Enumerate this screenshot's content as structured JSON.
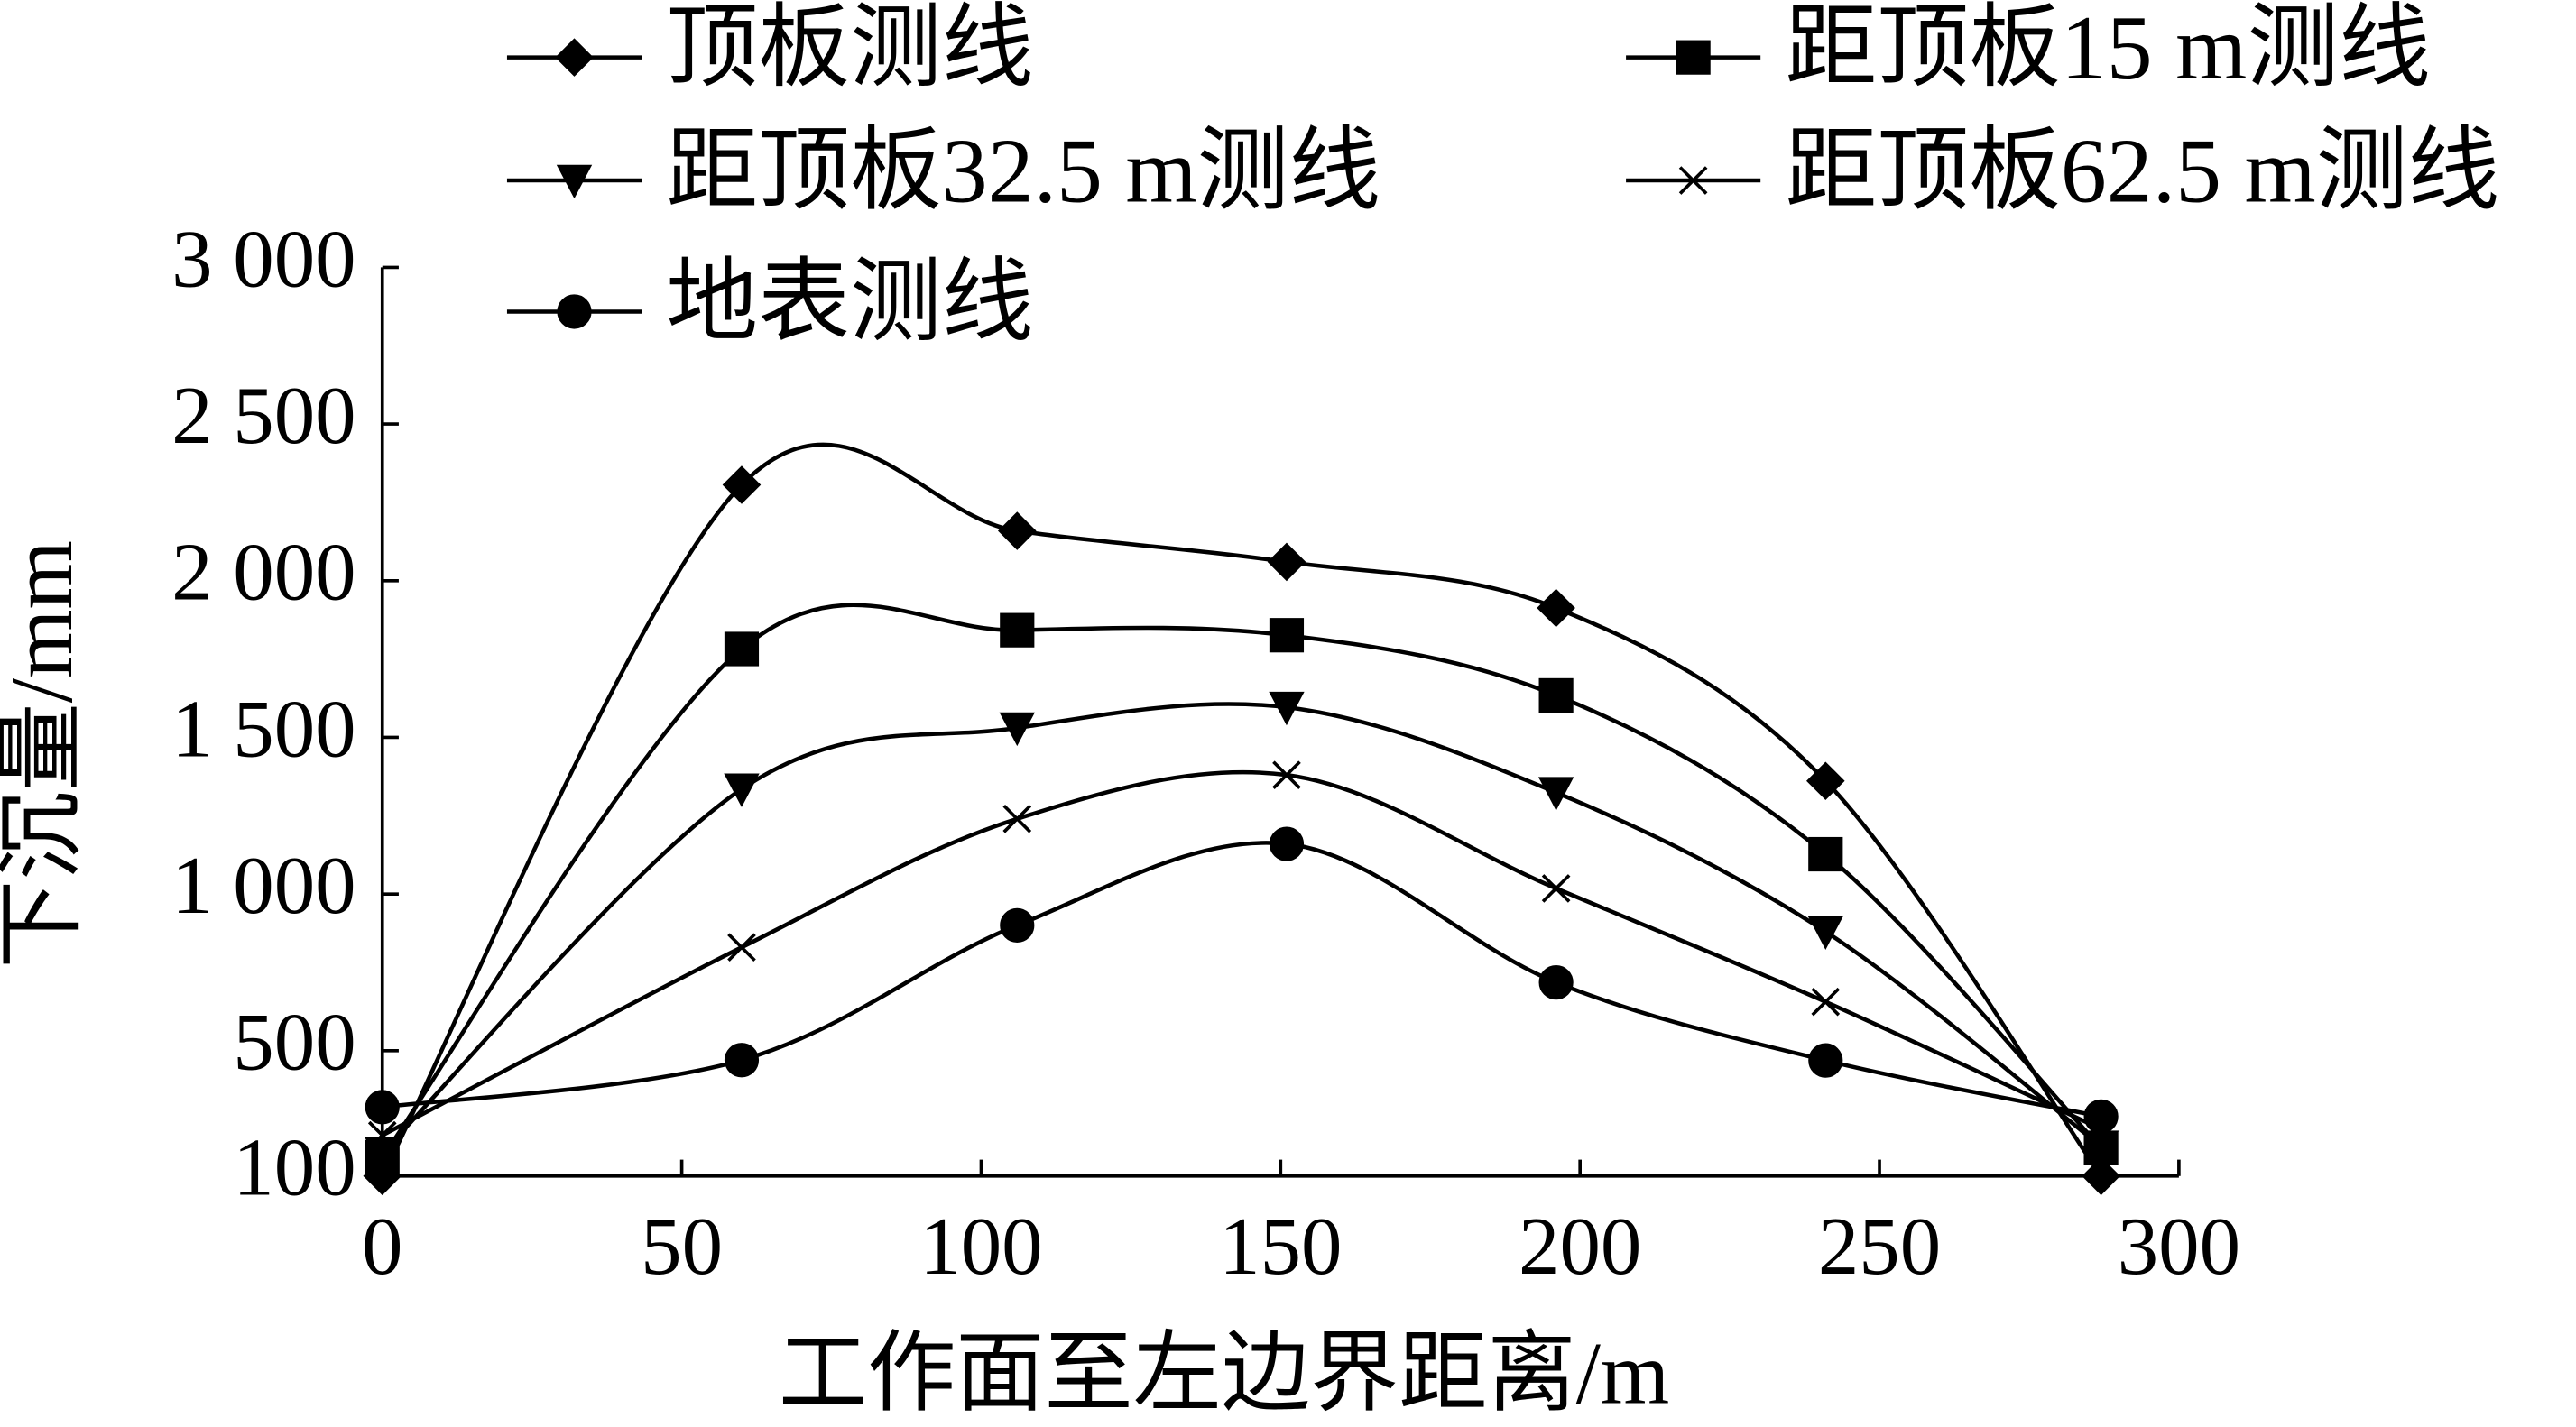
{
  "chart_data": {
    "type": "line",
    "x_label": "工作面至左边界距离/m",
    "y_label": "下沉量/mm",
    "x": [
      0,
      60,
      106,
      151,
      196,
      241,
      287
    ],
    "series": [
      {
        "name": "顶板测线",
        "color": "#000000",
        "marker": "diamond",
        "values": [
          100,
          2306,
          2159,
          2060,
          1913,
          1361,
          100
        ]
      },
      {
        "name": "距顶板15 m测线",
        "color": "#000000",
        "marker": "square",
        "values": [
          160,
          1782,
          1842,
          1826,
          1634,
          1127,
          190
        ]
      },
      {
        "name": "距顶板32.5 m测线",
        "color": "#000000",
        "marker": "triangle-down",
        "values": [
          175,
          1335,
          1530,
          1596,
          1324,
          880,
          195
        ]
      },
      {
        "name": "距顶板62.5 m测线",
        "color": "#000000",
        "marker": "x",
        "values": [
          230,
          830,
          1240,
          1380,
          1018,
          656,
          250
        ]
      },
      {
        "name": "地表测线",
        "color": "#000000",
        "marker": "circle",
        "values": [
          320,
          470,
          900,
          1160,
          718,
          469,
          290
        ]
      }
    ],
    "xlim": [
      0,
      300
    ],
    "xticks": [
      0,
      50,
      100,
      150,
      200,
      250,
      300
    ],
    "ylim": [
      100,
      3000
    ],
    "yticks": [
      100,
      500,
      {
        "value": 1000,
        "label": "1 000"
      },
      {
        "value": 1500,
        "label": "1 500"
      },
      {
        "value": 2000,
        "label": "2 000"
      },
      {
        "value": 2500,
        "label": "2 500"
      },
      {
        "value": 3000,
        "label": "3 000"
      }
    ],
    "grid": false,
    "legend": "top"
  }
}
